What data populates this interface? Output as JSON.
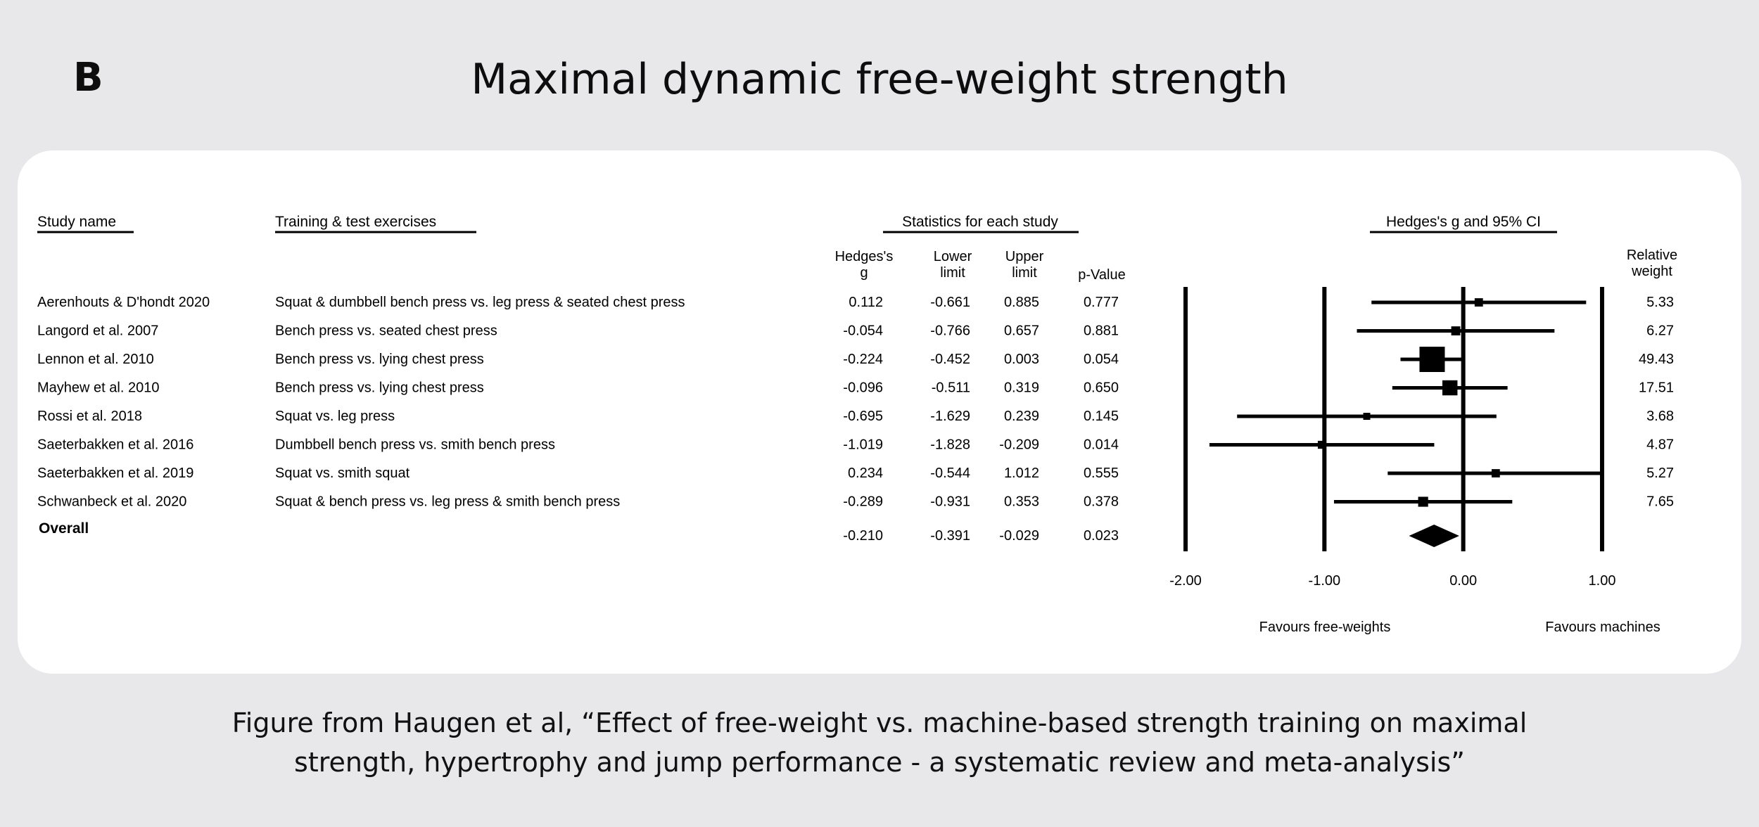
{
  "panel_label": "B",
  "title": "Maximal dynamic free-weight strength",
  "caption": {
    "line1": "Figure from Haugen et al, “Effect of free-weight vs. machine-based strength training on maximal",
    "line2": "strength, hypertrophy and jump performance - a systematic review and meta-analysis”"
  },
  "chart_data": {
    "type": "forest",
    "headers": {
      "study": "Study name",
      "exercises": "Training & test exercises",
      "stats": "Statistics for each study",
      "plot": "Hedges's g and 95% CI",
      "g_line1": "Hedges's",
      "g_line2": "g",
      "lower_line1": "Lower",
      "lower_line2": "limit",
      "upper_line1": "Upper",
      "upper_line2": "limit",
      "p": "p-Value",
      "weight_line1": "Relative",
      "weight_line2": "weight"
    },
    "studies": [
      {
        "name": "Aerenhouts & D'hondt 2020",
        "exercises": "Squat & dumbbell bench press vs. leg press & seated chest press",
        "g": 0.112,
        "g_text": "0.112",
        "lower": -0.661,
        "lower_text": "-0.661",
        "upper": 0.885,
        "upper_text": "0.885",
        "p_text": "0.777",
        "weight": 5.33,
        "weight_text": "5.33"
      },
      {
        "name": "Langord et al. 2007",
        "exercises": "Bench press vs. seated chest press",
        "g": -0.054,
        "g_text": "-0.054",
        "lower": -0.766,
        "lower_text": "-0.766",
        "upper": 0.657,
        "upper_text": "0.657",
        "p_text": "0.881",
        "weight": 6.27,
        "weight_text": "6.27"
      },
      {
        "name": "Lennon et al. 2010",
        "exercises": "Bench press vs. lying chest press",
        "g": -0.224,
        "g_text": "-0.224",
        "lower": -0.452,
        "lower_text": "-0.452",
        "upper": 0.003,
        "upper_text": "0.003",
        "p_text": "0.054",
        "weight": 49.43,
        "weight_text": "49.43"
      },
      {
        "name": "Mayhew et al. 2010",
        "exercises": "Bench press vs. lying chest press",
        "g": -0.096,
        "g_text": "-0.096",
        "lower": -0.511,
        "lower_text": "-0.511",
        "upper": 0.319,
        "upper_text": "0.319",
        "p_text": "0.650",
        "weight": 17.51,
        "weight_text": "17.51"
      },
      {
        "name": "Rossi et al. 2018",
        "exercises": "Squat vs. leg press",
        "g": -0.695,
        "g_text": "-0.695",
        "lower": -1.629,
        "lower_text": "-1.629",
        "upper": 0.239,
        "upper_text": "0.239",
        "p_text": "0.145",
        "weight": 3.68,
        "weight_text": "3.68"
      },
      {
        "name": "Saeterbakken et al. 2016",
        "exercises": "Dumbbell bench press vs. smith bench press",
        "g": -1.019,
        "g_text": "-1.019",
        "lower": -1.828,
        "lower_text": "-1.828",
        "upper": -0.209,
        "upper_text": "-0.209",
        "p_text": "0.014",
        "weight": 4.87,
        "weight_text": "4.87"
      },
      {
        "name": "Saeterbakken et al. 2019",
        "exercises": "Squat vs. smith squat",
        "g": 0.234,
        "g_text": "0.234",
        "lower": -0.544,
        "lower_text": "-0.544",
        "upper": 1.012,
        "upper_text": "1.012",
        "p_text": "0.555",
        "weight": 5.27,
        "weight_text": "5.27"
      },
      {
        "name": "Schwanbeck et al. 2020",
        "exercises": "Squat & bench press vs. leg press & smith bench press",
        "g": -0.289,
        "g_text": "-0.289",
        "lower": -0.931,
        "lower_text": "-0.931",
        "upper": 0.353,
        "upper_text": "0.353",
        "p_text": "0.378",
        "weight": 7.65,
        "weight_text": "7.65"
      }
    ],
    "overall": {
      "name": "Overall",
      "g": -0.21,
      "g_text": "-0.210",
      "lower": -0.391,
      "lower_text": "-0.391",
      "upper": -0.029,
      "upper_text": "-0.029",
      "p_text": "0.023"
    },
    "x_ticks": [
      {
        "value": -2.0,
        "label": "-2.00"
      },
      {
        "value": -1.0,
        "label": "-1.00"
      },
      {
        "value": 0.0,
        "label": "0.00"
      },
      {
        "value": 1.0,
        "label": "1.00"
      }
    ],
    "xlim": [
      -2.0,
      1.0
    ],
    "favours_left": "Favours free-weights",
    "favours_right": "Favours machines",
    "reference_lines": [
      -2.0,
      -1.0,
      0.0,
      1.0
    ],
    "color": "#000000"
  }
}
